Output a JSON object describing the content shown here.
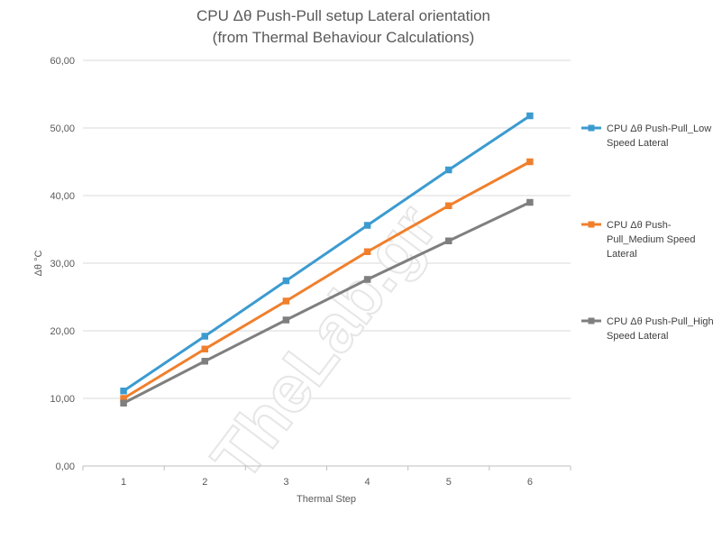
{
  "chart_data": {
    "type": "line",
    "title": "CPU  Δθ  Push-Pull setup  Lateral orientation",
    "subtitle": "(from Thermal Behaviour Calculations)",
    "xlabel": "Thermal Step",
    "ylabel": "Δθ °C",
    "categories": [
      "1",
      "2",
      "3",
      "4",
      "5",
      "6"
    ],
    "ylim": [
      0,
      60
    ],
    "yticks": [
      "0,00",
      "10,00",
      "20,00",
      "30,00",
      "40,00",
      "50,00",
      "60,00"
    ],
    "grid": true,
    "legend_position": "right",
    "watermark": "TheLab.gr",
    "series": [
      {
        "name": "CPU Δθ Push-Pull_Low Speed Lateral",
        "legend_lines": [
          "CPU Δθ Push-Pull_Low",
          "Speed Lateral"
        ],
        "color": "#3b9bd0",
        "values": [
          11.1,
          19.2,
          27.4,
          35.6,
          43.8,
          51.8
        ]
      },
      {
        "name": "CPU Δθ Push-Pull_Medium Speed Lateral",
        "legend_lines": [
          "CPU Δθ Push-",
          "Pull_Medium Speed",
          "Lateral"
        ],
        "color": "#f07f2c",
        "values": [
          10.0,
          17.3,
          24.4,
          31.7,
          38.5,
          45.0
        ]
      },
      {
        "name": "CPU Δθ Push-Pull_High Speed Lateral",
        "legend_lines": [
          "CPU Δθ Push-Pull_High",
          "Speed Lateral"
        ],
        "color": "#7f7f7f",
        "values": [
          9.3,
          15.5,
          21.6,
          27.6,
          33.3,
          39.0
        ]
      }
    ]
  }
}
